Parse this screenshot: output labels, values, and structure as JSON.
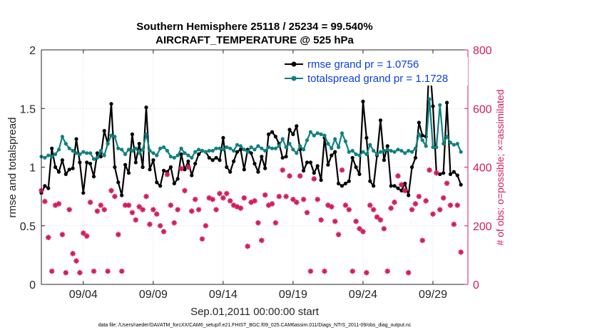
{
  "chart_data": {
    "type": "line",
    "title": "Southern Hemisphere 25118 / 25234 = 99.540%",
    "subtitle": "AIRCRAFT_TEMPERATURE @ 525 hPa",
    "xlabel": "Sep.01,2011 00:00:00 start",
    "ylabel": "rmse and totalspread",
    "y2label": "# of obs: o=possible; ×=assimilated",
    "xlim": [
      1,
      31.5
    ],
    "ylim": [
      0,
      2
    ],
    "y2lim": [
      0,
      800
    ],
    "xticks": [
      4,
      9,
      14,
      19,
      24,
      29
    ],
    "xtick_labels": [
      "09/04",
      "09/09",
      "09/14",
      "09/19",
      "09/24",
      "09/29"
    ],
    "yticks": [
      0,
      0.5,
      1,
      1.5,
      2
    ],
    "ytick_labels": [
      "0",
      "0.5",
      "1",
      "1.5",
      "2"
    ],
    "y2ticks": [
      0,
      200,
      400,
      600,
      800
    ],
    "y2tick_labels": [
      "0",
      "200",
      "400",
      "600",
      "800"
    ],
    "grid": true,
    "legend_position": "top-right",
    "series": [
      {
        "name": "rmse grand pr = 1.0756",
        "axis": "left",
        "color": "#000000",
        "marker": "circle",
        "x": [
          1.0,
          1.25,
          1.5,
          1.75,
          2.0,
          2.25,
          2.5,
          2.75,
          3.0,
          3.25,
          3.5,
          3.75,
          4.0,
          4.25,
          4.5,
          4.75,
          5.0,
          5.25,
          5.5,
          5.75,
          6.0,
          6.25,
          6.5,
          6.75,
          7.0,
          7.25,
          7.5,
          7.75,
          8.0,
          8.25,
          8.5,
          8.75,
          9.0,
          9.25,
          9.5,
          9.75,
          10.0,
          10.25,
          10.5,
          10.75,
          11.0,
          11.25,
          11.5,
          11.75,
          12.0,
          12.25,
          12.5,
          12.75,
          13.0,
          13.25,
          13.5,
          13.75,
          14.0,
          14.25,
          14.5,
          14.75,
          15.0,
          15.25,
          15.5,
          15.75,
          16.0,
          16.25,
          16.5,
          16.75,
          17.0,
          17.25,
          17.5,
          17.75,
          18.0,
          18.25,
          18.5,
          18.75,
          19.0,
          19.25,
          19.5,
          19.75,
          20.0,
          20.25,
          20.5,
          20.75,
          21.0,
          21.25,
          21.5,
          21.75,
          22.0,
          22.25,
          22.5,
          22.75,
          23.0,
          23.25,
          23.5,
          23.75,
          24.0,
          24.25,
          24.5,
          24.75,
          25.0,
          25.25,
          25.5,
          25.75,
          26.0,
          26.25,
          26.5,
          26.75,
          27.0,
          27.25,
          27.5,
          27.75,
          28.0,
          28.25,
          28.5,
          28.75,
          29.0,
          29.25,
          29.5,
          29.75,
          30.0,
          30.25,
          30.5,
          30.75,
          31.0
        ],
        "values": [
          0.78,
          0.84,
          0.82,
          1.16,
          1.0,
          0.96,
          1.06,
          0.94,
          0.98,
          0.99,
          1.24,
          1.04,
          0.78,
          1.04,
          1.03,
          0.92,
          1.12,
          1.09,
          1.31,
          1.2,
          1.54,
          1.0,
          0.87,
          0.76,
          1.02,
          0.95,
          1.28,
          1.04,
          1.2,
          1.0,
          1.51,
          0.98,
          1.06,
          0.87,
          0.84,
          0.97,
          0.96,
          1.0,
          0.86,
          0.9,
          1.11,
          0.98,
          1.05,
          0.93,
          1.03,
          1.11,
          1.14,
          1.13,
          1.08,
          1.06,
          1.08,
          1.06,
          1.25,
          1.0,
          0.96,
          1.05,
          1.13,
          1.15,
          0.98,
          1.15,
          1.12,
          1.03,
          0.96,
          1.09,
          0.99,
          1.28,
          1.3,
          1.26,
          1.2,
          1.08,
          1.09,
          1.32,
          1.28,
          1.35,
          1.15,
          0.97,
          1.04,
          1.04,
          0.95,
          1.01,
          0.89,
          1.25,
          1.02,
          1.1,
          1.13,
          0.86,
          0.84,
          0.86,
          0.88,
          1.08,
          1.0,
          0.94,
          1.56,
          1.25,
          0.88,
          0.84,
          1.1,
          1.4,
          1.06,
          1.18,
          0.84,
          0.84,
          0.82,
          0.8,
          0.86,
          0.76,
          1.0,
          1.08,
          1.38,
          1.27,
          1.26,
          1.91,
          1.52,
          0.95,
          0.94,
          0.95,
          1.55,
          0.94,
          0.96,
          0.93,
          0.85
        ]
      },
      {
        "name": "totalspread grand pr = 1.1728",
        "axis": "left",
        "color": "#118080",
        "marker": "circle",
        "x": [
          1.0,
          1.25,
          1.5,
          1.75,
          2.0,
          2.25,
          2.5,
          2.75,
          3.0,
          3.25,
          3.5,
          3.75,
          4.0,
          4.25,
          4.5,
          4.75,
          5.0,
          5.25,
          5.5,
          5.75,
          6.0,
          6.25,
          6.5,
          6.75,
          7.0,
          7.25,
          7.5,
          7.75,
          8.0,
          8.25,
          8.5,
          8.75,
          9.0,
          9.25,
          9.5,
          9.75,
          10.0,
          10.25,
          10.5,
          10.75,
          11.0,
          11.25,
          11.5,
          11.75,
          12.0,
          12.25,
          12.5,
          12.75,
          13.0,
          13.25,
          13.5,
          13.75,
          14.0,
          14.25,
          14.5,
          14.75,
          15.0,
          15.25,
          15.5,
          15.75,
          16.0,
          16.25,
          16.5,
          16.75,
          17.0,
          17.25,
          17.5,
          17.75,
          18.0,
          18.25,
          18.5,
          18.75,
          19.0,
          19.25,
          19.5,
          19.75,
          20.0,
          20.25,
          20.5,
          20.75,
          21.0,
          21.25,
          21.5,
          21.75,
          22.0,
          22.25,
          22.5,
          22.75,
          23.0,
          23.25,
          23.5,
          23.75,
          24.0,
          24.25,
          24.5,
          24.75,
          25.0,
          25.25,
          25.5,
          25.75,
          26.0,
          26.25,
          26.5,
          26.75,
          27.0,
          27.25,
          27.5,
          27.75,
          28.0,
          28.25,
          28.5,
          28.75,
          29.0,
          29.25,
          29.5,
          29.75,
          30.0,
          30.25,
          30.5,
          30.75,
          31.0
        ],
        "values": [
          1.09,
          1.08,
          1.1,
          1.09,
          1.11,
          1.15,
          1.26,
          1.2,
          1.16,
          1.14,
          1.12,
          1.11,
          1.13,
          1.12,
          1.12,
          1.07,
          1.08,
          1.14,
          1.1,
          1.2,
          1.27,
          1.26,
          1.16,
          1.15,
          1.11,
          1.15,
          1.14,
          1.16,
          1.12,
          1.15,
          1.28,
          1.14,
          1.12,
          1.1,
          1.16,
          1.17,
          1.14,
          1.09,
          1.08,
          1.1,
          1.16,
          1.12,
          1.1,
          1.08,
          1.13,
          1.15,
          1.14,
          1.13,
          1.14,
          1.14,
          1.16,
          1.16,
          1.15,
          1.17,
          1.16,
          1.14,
          1.19,
          1.18,
          1.15,
          1.13,
          1.17,
          1.15,
          1.18,
          1.16,
          1.14,
          1.17,
          1.16,
          1.16,
          1.18,
          1.24,
          1.17,
          1.2,
          1.15,
          1.12,
          1.18,
          1.15,
          1.23,
          1.3,
          1.27,
          1.29,
          1.28,
          1.27,
          1.2,
          1.16,
          1.24,
          1.17,
          1.29,
          1.22,
          1.13,
          1.14,
          1.11,
          1.1,
          1.13,
          1.11,
          1.19,
          1.14,
          1.11,
          1.13,
          1.14,
          1.15,
          1.14,
          1.13,
          1.15,
          1.14,
          1.12,
          1.14,
          1.13,
          1.16,
          1.28,
          1.23,
          1.18,
          1.58,
          1.17,
          1.17,
          1.53,
          1.2,
          1.26,
          1.21,
          1.19,
          1.2,
          1.13
        ]
      },
      {
        "name": "# of obs assimilated",
        "axis": "right",
        "color": "#d11e5c",
        "marker": "star",
        "x": [
          1.0,
          1.25,
          1.5,
          1.75,
          2.0,
          2.25,
          2.5,
          2.75,
          3.0,
          3.25,
          3.5,
          3.75,
          4.0,
          4.25,
          4.5,
          4.75,
          5.0,
          5.25,
          5.5,
          5.75,
          6.0,
          6.25,
          6.5,
          6.75,
          7.0,
          7.25,
          7.5,
          7.75,
          8.0,
          8.25,
          8.5,
          8.75,
          9.0,
          9.25,
          9.5,
          9.75,
          10.0,
          10.25,
          10.5,
          10.75,
          11.0,
          11.25,
          11.5,
          11.75,
          12.0,
          12.25,
          12.5,
          12.75,
          13.0,
          13.25,
          13.5,
          13.75,
          14.0,
          14.25,
          14.5,
          14.75,
          15.0,
          15.25,
          15.5,
          15.75,
          16.0,
          16.25,
          16.5,
          16.75,
          17.0,
          17.25,
          17.5,
          17.75,
          18.0,
          18.25,
          18.5,
          18.75,
          19.0,
          19.25,
          19.5,
          19.75,
          20.0,
          20.25,
          20.5,
          20.75,
          21.0,
          21.25,
          21.5,
          21.75,
          22.0,
          22.25,
          22.5,
          22.75,
          23.0,
          23.25,
          23.5,
          23.75,
          24.0,
          24.25,
          24.5,
          24.75,
          25.0,
          25.25,
          25.5,
          25.75,
          26.0,
          26.25,
          26.5,
          26.75,
          27.0,
          27.25,
          27.5,
          27.75,
          28.0,
          28.25,
          28.5,
          28.75,
          29.0,
          29.25,
          29.5,
          29.75,
          30.0,
          30.25,
          30.5,
          30.75,
          31.0
        ],
        "values": [
          320,
          283,
          160,
          45,
          270,
          275,
          170,
          40,
          255,
          105,
          80,
          40,
          175,
          165,
          280,
          45,
          250,
          270,
          255,
          45,
          320,
          300,
          170,
          45,
          270,
          270,
          245,
          220,
          265,
          255,
          300,
          205,
          255,
          240,
          200,
          180,
          375,
          270,
          210,
          255,
          395,
          320,
          400,
          250,
          290,
          255,
          155,
          200,
          295,
          290,
          255,
          310,
          295,
          310,
          285,
          270,
          265,
          260,
          295,
          130,
          280,
          285,
          210,
          150,
          305,
          270,
          275,
          210,
          300,
          390,
          300,
          370,
          290,
          280,
          370,
          290,
          245,
          45,
          360,
          290,
          220,
          45,
          270,
          265,
          215,
          170,
          390,
          270,
          255,
          45,
          215,
          190,
          180,
          40,
          270,
          255,
          230,
          220,
          190,
          45,
          260,
          280,
          370,
          340,
          320,
          40,
          255,
          275,
          300,
          150,
          285,
          390,
          240,
          380,
          255,
          295,
          345,
          270,
          205,
          270,
          110
        ]
      }
    ]
  },
  "footer": "data file: /Users/raeder/DAI/ATM_forcXX/CAM6_setup/f.e21.FHIST_BGC.f09_025.CAM6assim.011/Diags_NTrS_2011-09/obs_diag_output.nc"
}
